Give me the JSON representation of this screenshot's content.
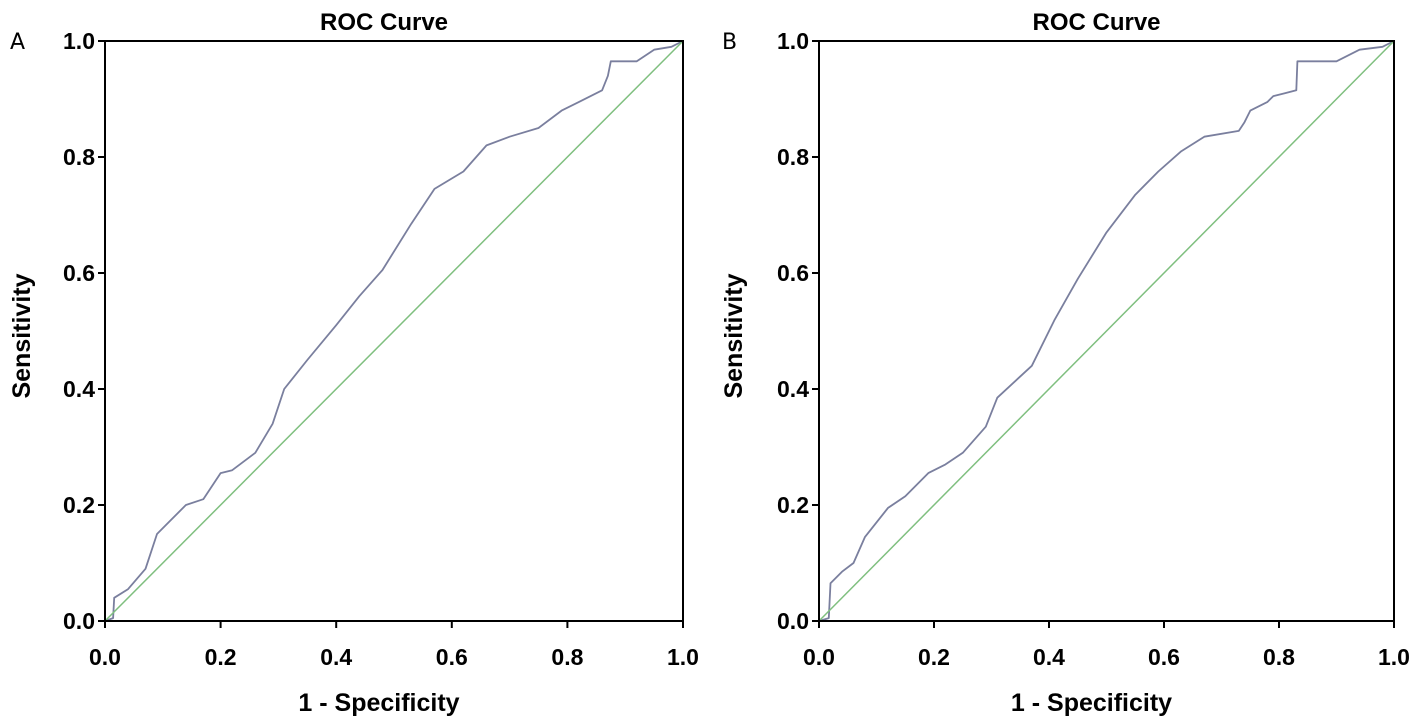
{
  "chart_data": [
    {
      "type": "line",
      "panel_label": "A",
      "title": "ROC Curve",
      "xlabel": "1 - Specificity",
      "ylabel": "Sensitivity",
      "xlim": [
        0,
        1
      ],
      "ylim": [
        0,
        1
      ],
      "x_ticks": [
        "0.0",
        "0.2",
        "0.4",
        "0.6",
        "0.8",
        "1.0"
      ],
      "y_ticks": [
        "0.0",
        "0.2",
        "0.4",
        "0.6",
        "0.8",
        "1.0"
      ],
      "series": [
        {
          "name": "ROC curve",
          "color": "#7a7f9e",
          "points": [
            [
              0.0,
              0.0
            ],
            [
              0.014,
              0.005
            ],
            [
              0.016,
              0.04
            ],
            [
              0.04,
              0.055
            ],
            [
              0.07,
              0.09
            ],
            [
              0.09,
              0.15
            ],
            [
              0.105,
              0.165
            ],
            [
              0.14,
              0.2
            ],
            [
              0.17,
              0.21
            ],
            [
              0.2,
              0.255
            ],
            [
              0.22,
              0.26
            ],
            [
              0.26,
              0.29
            ],
            [
              0.29,
              0.34
            ],
            [
              0.31,
              0.4
            ],
            [
              0.35,
              0.45
            ],
            [
              0.4,
              0.51
            ],
            [
              0.44,
              0.56
            ],
            [
              0.48,
              0.605
            ],
            [
              0.53,
              0.685
            ],
            [
              0.57,
              0.745
            ],
            [
              0.62,
              0.775
            ],
            [
              0.66,
              0.82
            ],
            [
              0.7,
              0.835
            ],
            [
              0.75,
              0.85
            ],
            [
              0.79,
              0.88
            ],
            [
              0.82,
              0.895
            ],
            [
              0.86,
              0.915
            ],
            [
              0.87,
              0.94
            ],
            [
              0.875,
              0.965
            ],
            [
              0.92,
              0.965
            ],
            [
              0.95,
              0.985
            ],
            [
              0.98,
              0.99
            ],
            [
              1.0,
              1.0
            ]
          ]
        },
        {
          "name": "Reference line",
          "color": "#7fbf7f",
          "points": [
            [
              0,
              0
            ],
            [
              1,
              1
            ]
          ]
        }
      ]
    },
    {
      "type": "line",
      "panel_label": "B",
      "title": "ROC Curve",
      "xlabel": "1 - Specificity",
      "ylabel": "Sensitivity",
      "xlim": [
        0,
        1
      ],
      "ylim": [
        0,
        1
      ],
      "x_ticks": [
        "0.0",
        "0.2",
        "0.4",
        "0.6",
        "0.8",
        "1.0"
      ],
      "y_ticks": [
        "0.0",
        "0.2",
        "0.4",
        "0.6",
        "0.8",
        "1.0"
      ],
      "series": [
        {
          "name": "ROC curve",
          "color": "#7a7f9e",
          "points": [
            [
              0.0,
              0.0
            ],
            [
              0.017,
              0.005
            ],
            [
              0.02,
              0.065
            ],
            [
              0.04,
              0.085
            ],
            [
              0.06,
              0.1
            ],
            [
              0.08,
              0.145
            ],
            [
              0.12,
              0.195
            ],
            [
              0.15,
              0.215
            ],
            [
              0.19,
              0.255
            ],
            [
              0.22,
              0.27
            ],
            [
              0.25,
              0.29
            ],
            [
              0.29,
              0.335
            ],
            [
              0.31,
              0.385
            ],
            [
              0.37,
              0.44
            ],
            [
              0.41,
              0.52
            ],
            [
              0.45,
              0.59
            ],
            [
              0.5,
              0.67
            ],
            [
              0.55,
              0.735
            ],
            [
              0.59,
              0.775
            ],
            [
              0.63,
              0.81
            ],
            [
              0.67,
              0.835
            ],
            [
              0.73,
              0.845
            ],
            [
              0.74,
              0.86
            ],
            [
              0.75,
              0.88
            ],
            [
              0.78,
              0.895
            ],
            [
              0.79,
              0.905
            ],
            [
              0.81,
              0.91
            ],
            [
              0.83,
              0.915
            ],
            [
              0.832,
              0.965
            ],
            [
              0.9,
              0.965
            ],
            [
              0.94,
              0.985
            ],
            [
              0.98,
              0.99
            ],
            [
              1.0,
              1.0
            ]
          ]
        },
        {
          "name": "Reference line",
          "color": "#7fbf7f",
          "points": [
            [
              0,
              0
            ],
            [
              1,
              1
            ]
          ]
        }
      ]
    }
  ]
}
